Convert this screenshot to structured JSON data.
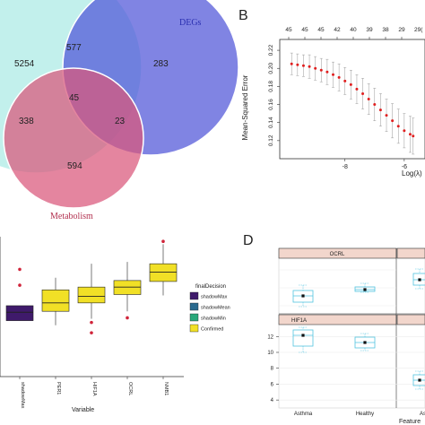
{
  "panels": {
    "B": "B",
    "D": "D"
  },
  "venn": {
    "labels": {
      "degs": "DEGs",
      "metabolism": "Metabolism"
    },
    "counts": {
      "left_only": "5254",
      "left_degs": "577",
      "degs_only": "283",
      "center": "45",
      "left_metab": "338",
      "degs_metab": "23",
      "metab_only": "594"
    },
    "colors": {
      "left": "#8fe3dc",
      "degs": "#4f55d8",
      "metab": "#d9567a",
      "degs_label": "#2a2fb0",
      "metab_label": "#b2304f"
    }
  },
  "chart_data": [
    {
      "type": "line",
      "panel": "B",
      "xlabel": "Log(λ)",
      "ylabel": "Mean-Squared Error",
      "x_ticks": [
        "-8",
        "-6"
      ],
      "y_ticks": [
        "0.12",
        "0.14",
        "0.16",
        "0.18",
        "0.20",
        "0.22"
      ],
      "top_ticks": [
        "45",
        "45",
        "45",
        "42",
        "40",
        "39",
        "38",
        "29"
      ],
      "top_tick_partial": "29(",
      "xlim": [
        -10.2,
        -5.3
      ],
      "ylim": [
        0.1,
        0.232
      ],
      "series": [
        {
          "x": [
            -9.8,
            -9.6,
            -9.4,
            -9.2,
            -9.0,
            -8.8,
            -8.6,
            -8.4,
            -8.2,
            -8.0,
            -7.8,
            -7.6,
            -7.4,
            -7.2,
            -7.0,
            -6.8,
            -6.6,
            -6.4,
            -6.2,
            -6.0,
            -5.8,
            -5.7
          ],
          "y": [
            0.205,
            0.204,
            0.203,
            0.202,
            0.2,
            0.198,
            0.196,
            0.193,
            0.19,
            0.186,
            0.182,
            0.177,
            0.172,
            0.166,
            0.16,
            0.154,
            0.148,
            0.142,
            0.136,
            0.131,
            0.127,
            0.125
          ],
          "err": [
            0.012,
            0.012,
            0.012,
            0.013,
            0.013,
            0.013,
            0.014,
            0.014,
            0.015,
            0.015,
            0.016,
            0.016,
            0.017,
            0.017,
            0.018,
            0.018,
            0.018,
            0.019,
            0.019,
            0.019,
            0.02,
            0.02
          ],
          "color": "#e02020"
        }
      ]
    },
    {
      "type": "box",
      "panel": "C",
      "xlabel": "Variable",
      "categories": [
        "shadowMax",
        "PER1",
        "HIF1A",
        "OCRL",
        "NMB1"
      ],
      "boxes": [
        {
          "q1": 0.0,
          "median": 0.9,
          "q3": 1.6,
          "whisker_low": 0.0,
          "whisker_high": 1.6,
          "outliers": [
            5.5,
            3.8
          ],
          "color": "#3f1a6b"
        },
        {
          "q1": 1.0,
          "median": 1.9,
          "q3": 3.3,
          "whisker_low": -0.5,
          "whisker_high": 4.6,
          "outliers": [],
          "color": "#f1e026"
        },
        {
          "q1": 1.9,
          "median": 2.6,
          "q3": 3.6,
          "whisker_low": 0.2,
          "whisker_high": 6.1,
          "outliers": [
            -0.2,
            -1.3
          ],
          "color": "#f1e026"
        },
        {
          "q1": 2.8,
          "median": 3.6,
          "q3": 4.3,
          "whisker_low": 1.0,
          "whisker_high": 6.3,
          "outliers": [
            0.3
          ],
          "color": "#f1e026"
        },
        {
          "q1": 4.2,
          "median": 5.2,
          "q3": 6.1,
          "whisker_low": 2.7,
          "whisker_high": 8.2,
          "outliers": [
            8.5
          ],
          "color": "#f1e026"
        }
      ],
      "ylim": [
        -6,
        9
      ],
      "legend": {
        "title": "finalDecision",
        "items": [
          {
            "label": "shadowMax",
            "color": "#3f1a6b"
          },
          {
            "label": "shadowMean",
            "color": "#2a6a8e"
          },
          {
            "label": "shadowMin",
            "color": "#2aa87a"
          },
          {
            "label": "Confirmed",
            "color": "#f1e026"
          }
        ]
      }
    },
    {
      "type": "box",
      "panel": "D",
      "xlabel": "Feature",
      "facets": [
        "OCRL",
        "HIF1A"
      ],
      "categories": [
        "Asthma",
        "Healthy"
      ],
      "y_ticks": [
        "4",
        "6",
        "8",
        "10",
        "12"
      ],
      "ylim": [
        3,
        13.5
      ],
      "partial_category": "As"
    }
  ]
}
